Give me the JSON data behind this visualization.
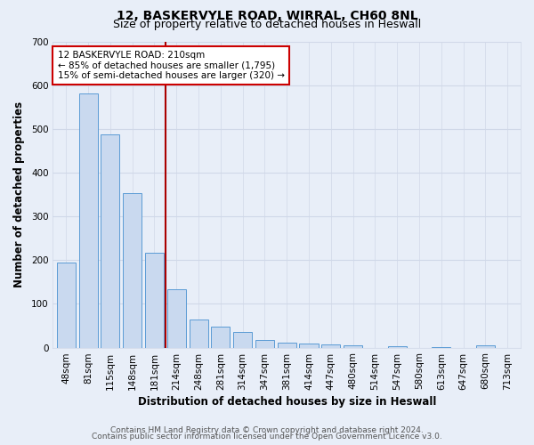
{
  "title_line1": "12, BASKERVYLE ROAD, WIRRAL, CH60 8NL",
  "title_line2": "Size of property relative to detached houses in Heswall",
  "xlabel": "Distribution of detached houses by size in Heswall",
  "ylabel": "Number of detached properties",
  "bar_labels": [
    "48sqm",
    "81sqm",
    "115sqm",
    "148sqm",
    "181sqm",
    "214sqm",
    "248sqm",
    "281sqm",
    "314sqm",
    "347sqm",
    "381sqm",
    "414sqm",
    "447sqm",
    "480sqm",
    "514sqm",
    "547sqm",
    "580sqm",
    "613sqm",
    "647sqm",
    "680sqm",
    "713sqm"
  ],
  "bar_heights": [
    195,
    580,
    487,
    353,
    217,
    133,
    65,
    48,
    35,
    17,
    11,
    10,
    8,
    5,
    0,
    3,
    0,
    2,
    0,
    5,
    0
  ],
  "bar_color": "#c9d9ef",
  "bar_edge_color": "#5b9bd5",
  "red_line_x": 4.5,
  "annotation_text": "12 BASKERVYLE ROAD: 210sqm\n← 85% of detached houses are smaller (1,795)\n15% of semi-detached houses are larger (320) →",
  "annotation_box_color": "#ffffff",
  "annotation_box_edge_color": "#cc0000",
  "ylim": [
    0,
    700
  ],
  "yticks": [
    0,
    100,
    200,
    300,
    400,
    500,
    600,
    700
  ],
  "grid_color": "#d0d8e8",
  "background_color": "#e8eef8",
  "footer_line1": "Contains HM Land Registry data © Crown copyright and database right 2024.",
  "footer_line2": "Contains public sector information licensed under the Open Government Licence v3.0.",
  "title_fontsize": 10,
  "subtitle_fontsize": 9,
  "axis_label_fontsize": 8.5,
  "tick_fontsize": 7.5,
  "annotation_fontsize": 7.5,
  "footer_fontsize": 6.5
}
